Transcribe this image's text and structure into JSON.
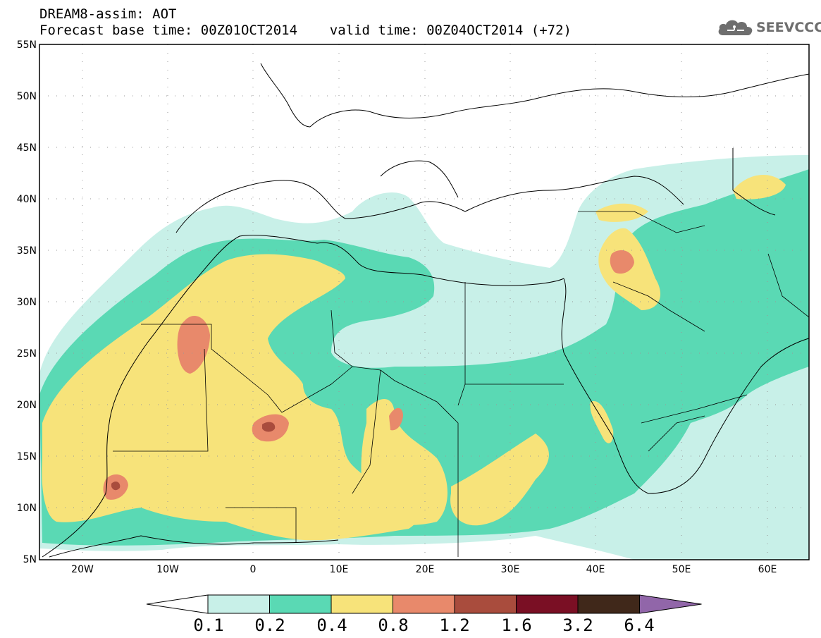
{
  "header": {
    "line1": "DREAM8-assim: AOT",
    "line2": "Forecast base time: 00Z01OCT2014    valid time: 00Z04OCT2014 (+72)"
  },
  "logo": {
    "icon": "cloud-icon",
    "text": "SEEVCCC"
  },
  "axes": {
    "lat_labels": [
      "55N",
      "50N",
      "45N",
      "40N",
      "35N",
      "30N",
      "25N",
      "20N",
      "15N",
      "10N",
      "5N"
    ],
    "lon_labels": [
      "20W",
      "10W",
      "0",
      "10E",
      "20E",
      "30E",
      "40E",
      "50E",
      "60E"
    ]
  },
  "colorbar": {
    "colors": [
      "#ffffff",
      "#c8f0e8",
      "#5ad9b4",
      "#f7e37a",
      "#e8896b",
      "#a94c3d",
      "#7a0f24",
      "#40281a",
      "#9166a9"
    ],
    "labels": [
      "0.1",
      "0.2",
      "0.4",
      "0.8",
      "1.2",
      "1.6",
      "3.2",
      "6.4"
    ]
  }
}
